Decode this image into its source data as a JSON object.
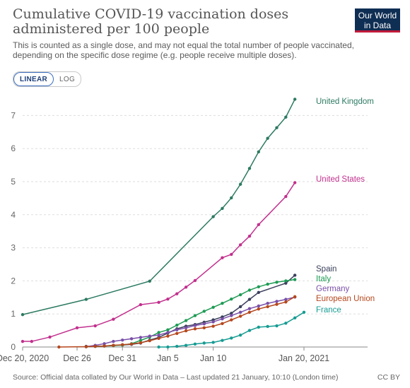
{
  "header": {
    "title": "Cumulative COVID-19 vaccination doses administered per 100 people",
    "subtitle": "This is counted as a single dose, and may not equal the total number of people vaccinated, depending on the specific dose regime (e.g. people receive multiple doses).",
    "logo_text": "Our World in Data",
    "logo_colors": {
      "background": "#0f2e53",
      "accent": "#c21b3b"
    }
  },
  "controls": {
    "linear_label": "LINEAR",
    "log_label": "LOG",
    "active": "LINEAR"
  },
  "footer": {
    "source": "Source: Official data collated by Our World in Data – Last updated 21 January, 10:10 (London time)",
    "license": "CC BY"
  },
  "chart_data": {
    "type": "line",
    "xlabel": "",
    "ylabel": "",
    "x_ticks": [
      {
        "date": "2020-12-20",
        "label": "Dec 20, 2020"
      },
      {
        "date": "2020-12-26",
        "label": "Dec 26"
      },
      {
        "date": "2020-12-31",
        "label": "Dec 31"
      },
      {
        "date": "2021-01-05",
        "label": "Jan 5"
      },
      {
        "date": "2021-01-10",
        "label": "Jan 10"
      },
      {
        "date": "2021-01-20",
        "label": "Jan 20, 2021"
      }
    ],
    "xlim": [
      "2020-12-20",
      "2021-01-20"
    ],
    "ylim": [
      0,
      7.5
    ],
    "y_ticks": [
      0,
      1,
      2,
      3,
      4,
      5,
      6,
      7
    ],
    "grid": "horizontal dashed",
    "legend": "inline labels at line ends (right)",
    "series": [
      {
        "name": "United Kingdom",
        "color": "#2c7a62",
        "points": [
          [
            "2020-12-20",
            0.98
          ],
          [
            "2020-12-27",
            1.44
          ],
          [
            "2021-01-03",
            1.99
          ],
          [
            "2021-01-10",
            3.94
          ],
          [
            "2021-01-11",
            4.19
          ],
          [
            "2021-01-12",
            4.51
          ],
          [
            "2021-01-13",
            4.92
          ],
          [
            "2021-01-14",
            5.4
          ],
          [
            "2021-01-15",
            5.9
          ],
          [
            "2021-01-16",
            6.31
          ],
          [
            "2021-01-17",
            6.63
          ],
          [
            "2021-01-18",
            6.95
          ],
          [
            "2021-01-19",
            7.49
          ]
        ]
      },
      {
        "name": "United States",
        "color": "#c2308e",
        "points": [
          [
            "2020-12-20",
            0.17
          ],
          [
            "2020-12-21",
            0.17
          ],
          [
            "2020-12-23",
            0.3
          ],
          [
            "2020-12-26",
            0.58
          ],
          [
            "2020-12-28",
            0.64
          ],
          [
            "2020-12-30",
            0.84
          ],
          [
            "2021-01-02",
            1.28
          ],
          [
            "2021-01-04",
            1.35
          ],
          [
            "2021-01-05",
            1.45
          ],
          [
            "2021-01-06",
            1.61
          ],
          [
            "2021-01-07",
            1.81
          ],
          [
            "2021-01-08",
            2.01
          ],
          [
            "2021-01-11",
            2.7
          ],
          [
            "2021-01-12",
            2.8
          ],
          [
            "2021-01-13",
            3.09
          ],
          [
            "2021-01-14",
            3.35
          ],
          [
            "2021-01-15",
            3.7
          ],
          [
            "2021-01-18",
            4.55
          ],
          [
            "2021-01-19",
            4.97
          ]
        ]
      },
      {
        "name": "Spain",
        "color": "#3b3f5c",
        "points": [
          [
            "2020-12-27",
            0.02
          ],
          [
            "2020-12-28",
            0.02
          ],
          [
            "2020-12-29",
            0.03
          ],
          [
            "2020-12-30",
            0.05
          ],
          [
            "2020-12-31",
            0.06
          ],
          [
            "2021-01-01",
            0.08
          ],
          [
            "2021-01-02",
            0.12
          ],
          [
            "2021-01-03",
            0.21
          ],
          [
            "2021-01-04",
            0.29
          ],
          [
            "2021-01-05",
            0.42
          ],
          [
            "2021-01-06",
            0.55
          ],
          [
            "2021-01-07",
            0.63
          ],
          [
            "2021-01-08",
            0.68
          ],
          [
            "2021-01-09",
            0.75
          ],
          [
            "2021-01-10",
            0.82
          ],
          [
            "2021-01-11",
            0.91
          ],
          [
            "2021-01-12",
            1.02
          ],
          [
            "2021-01-13",
            1.22
          ],
          [
            "2021-01-14",
            1.44
          ],
          [
            "2021-01-15",
            1.65
          ],
          [
            "2021-01-18",
            1.93
          ],
          [
            "2021-01-19",
            2.17
          ]
        ]
      },
      {
        "name": "Italy",
        "color": "#1f9b55",
        "points": [
          [
            "2020-12-27",
            0.01
          ],
          [
            "2020-12-28",
            0.02
          ],
          [
            "2020-12-29",
            0.03
          ],
          [
            "2020-12-30",
            0.04
          ],
          [
            "2020-12-31",
            0.06
          ],
          [
            "2021-01-01",
            0.1
          ],
          [
            "2021-01-02",
            0.2
          ],
          [
            "2021-01-03",
            0.3
          ],
          [
            "2021-01-04",
            0.44
          ],
          [
            "2021-01-05",
            0.52
          ],
          [
            "2021-01-06",
            0.66
          ],
          [
            "2021-01-07",
            0.8
          ],
          [
            "2021-01-08",
            0.95
          ],
          [
            "2021-01-09",
            1.08
          ],
          [
            "2021-01-10",
            1.2
          ],
          [
            "2021-01-11",
            1.32
          ],
          [
            "2021-01-12",
            1.45
          ],
          [
            "2021-01-13",
            1.58
          ],
          [
            "2021-01-14",
            1.72
          ],
          [
            "2021-01-15",
            1.82
          ],
          [
            "2021-01-16",
            1.9
          ],
          [
            "2021-01-17",
            1.96
          ],
          [
            "2021-01-18",
            2.0
          ],
          [
            "2021-01-19",
            2.04
          ]
        ]
      },
      {
        "name": "Germany",
        "color": "#7a4fa8",
        "points": [
          [
            "2020-12-27",
            0.01
          ],
          [
            "2020-12-28",
            0.05
          ],
          [
            "2020-12-29",
            0.1
          ],
          [
            "2020-12-30",
            0.17
          ],
          [
            "2020-12-31",
            0.21
          ],
          [
            "2021-01-01",
            0.25
          ],
          [
            "2021-01-02",
            0.29
          ],
          [
            "2021-01-03",
            0.33
          ],
          [
            "2021-01-04",
            0.36
          ],
          [
            "2021-01-05",
            0.44
          ],
          [
            "2021-01-06",
            0.52
          ],
          [
            "2021-01-07",
            0.58
          ],
          [
            "2021-01-08",
            0.65
          ],
          [
            "2021-01-09",
            0.7
          ],
          [
            "2021-01-10",
            0.76
          ],
          [
            "2021-01-11",
            0.85
          ],
          [
            "2021-01-12",
            0.95
          ],
          [
            "2021-01-13",
            1.05
          ],
          [
            "2021-01-14",
            1.16
          ],
          [
            "2021-01-15",
            1.24
          ],
          [
            "2021-01-16",
            1.32
          ],
          [
            "2021-01-17",
            1.38
          ],
          [
            "2021-01-18",
            1.44
          ],
          [
            "2021-01-19",
            1.51
          ]
        ]
      },
      {
        "name": "European Union",
        "color": "#b5471d",
        "points": [
          [
            "2020-12-24",
            0.0
          ],
          [
            "2020-12-27",
            0.01
          ],
          [
            "2020-12-28",
            0.02
          ],
          [
            "2020-12-29",
            0.03
          ],
          [
            "2020-12-30",
            0.05
          ],
          [
            "2020-12-31",
            0.07
          ],
          [
            "2021-01-01",
            0.09
          ],
          [
            "2021-01-02",
            0.13
          ],
          [
            "2021-01-03",
            0.19
          ],
          [
            "2021-01-04",
            0.26
          ],
          [
            "2021-01-05",
            0.33
          ],
          [
            "2021-01-06",
            0.41
          ],
          [
            "2021-01-07",
            0.49
          ],
          [
            "2021-01-08",
            0.55
          ],
          [
            "2021-01-09",
            0.58
          ],
          [
            "2021-01-10",
            0.63
          ],
          [
            "2021-01-11",
            0.71
          ],
          [
            "2021-01-12",
            0.82
          ],
          [
            "2021-01-13",
            0.93
          ],
          [
            "2021-01-14",
            1.05
          ],
          [
            "2021-01-15",
            1.15
          ],
          [
            "2021-01-16",
            1.22
          ],
          [
            "2021-01-17",
            1.29
          ],
          [
            "2021-01-18",
            1.36
          ],
          [
            "2021-01-19",
            1.52
          ]
        ]
      },
      {
        "name": "France",
        "color": "#169c93",
        "points": [
          [
            "2021-01-04",
            0.0
          ],
          [
            "2021-01-05",
            0.0
          ],
          [
            "2021-01-06",
            0.02
          ],
          [
            "2021-01-07",
            0.05
          ],
          [
            "2021-01-08",
            0.09
          ],
          [
            "2021-01-09",
            0.12
          ],
          [
            "2021-01-10",
            0.14
          ],
          [
            "2021-01-11",
            0.2
          ],
          [
            "2021-01-12",
            0.27
          ],
          [
            "2021-01-13",
            0.36
          ],
          [
            "2021-01-14",
            0.5
          ],
          [
            "2021-01-15",
            0.6
          ],
          [
            "2021-01-16",
            0.62
          ],
          [
            "2021-01-17",
            0.64
          ],
          [
            "2021-01-18",
            0.72
          ],
          [
            "2021-01-19",
            0.88
          ],
          [
            "2021-01-20",
            1.05
          ]
        ]
      }
    ]
  }
}
